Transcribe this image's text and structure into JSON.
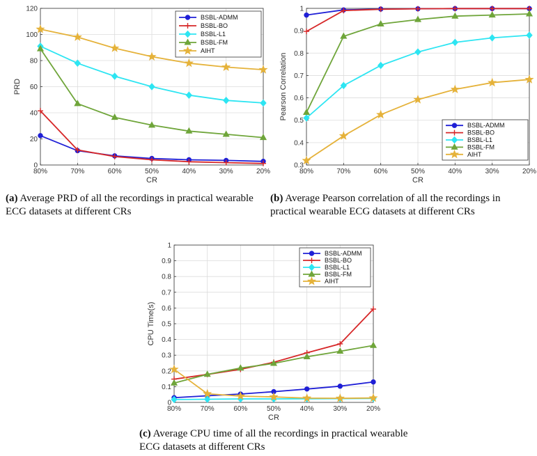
{
  "chart_data": [
    {
      "id": "a",
      "type": "line",
      "categories": [
        "80%",
        "70%",
        "60%",
        "50%",
        "40%",
        "30%",
        "20%"
      ],
      "xlabel": "CR",
      "ylabel": "PRD",
      "ylim": [
        0,
        120
      ],
      "yticks": [
        "0",
        "20",
        "40",
        "60",
        "80",
        "100",
        "120"
      ],
      "grid": true,
      "legend_position": "top-right",
      "series": [
        {
          "name": "BSBL-ADMM",
          "color": "#1f1fd6",
          "marker": "circle",
          "values": [
            22.5,
            11,
            7,
            5,
            4,
            3.5,
            2.8
          ]
        },
        {
          "name": "BSBL-BO",
          "color": "#d62728",
          "marker": "plus",
          "values": [
            41.5,
            11.5,
            6.5,
            4,
            2.5,
            1.8,
            1.2
          ]
        },
        {
          "name": "BSBL-L1",
          "color": "#2de5f2",
          "marker": "diamond",
          "values": [
            91,
            78,
            68,
            60,
            53.5,
            49.5,
            47.5
          ]
        },
        {
          "name": "BSBL-FM",
          "color": "#6fa53a",
          "marker": "triangle",
          "values": [
            89,
            47,
            36.5,
            30.5,
            26,
            23.5,
            21
          ]
        },
        {
          "name": "AIHT",
          "color": "#e5b23a",
          "marker": "star",
          "values": [
            104,
            98,
            89.5,
            83,
            78,
            75,
            73
          ]
        }
      ]
    },
    {
      "id": "b",
      "type": "line",
      "categories": [
        "80%",
        "70%",
        "60%",
        "50%",
        "40%",
        "30%",
        "20%"
      ],
      "xlabel": "CR",
      "ylabel": "Pearson Correlation",
      "ylim": [
        0.3,
        1
      ],
      "yticks": [
        "0.3",
        "0.4",
        "0.5",
        "0.6",
        "0.7",
        "0.8",
        "0.9",
        "1"
      ],
      "grid": true,
      "legend_position": "bottom-right",
      "series": [
        {
          "name": "BSBL-ADMM",
          "color": "#1f1fd6",
          "marker": "circle",
          "values": [
            0.97,
            0.993,
            0.997,
            0.998,
            0.999,
            0.999,
            0.999
          ]
        },
        {
          "name": "BSBL-BO",
          "color": "#d62728",
          "marker": "plus",
          "values": [
            0.897,
            0.99,
            0.996,
            0.998,
            0.999,
            0.999,
            0.999
          ]
        },
        {
          "name": "BSBL-L1",
          "color": "#2de5f2",
          "marker": "diamond",
          "values": [
            0.51,
            0.655,
            0.745,
            0.805,
            0.848,
            0.868,
            0.88
          ]
        },
        {
          "name": "BSBL-FM",
          "color": "#6fa53a",
          "marker": "triangle",
          "values": [
            0.535,
            0.875,
            0.93,
            0.95,
            0.965,
            0.97,
            0.975
          ]
        },
        {
          "name": "AIHT",
          "color": "#e5b23a",
          "marker": "star",
          "values": [
            0.32,
            0.43,
            0.525,
            0.592,
            0.638,
            0.668,
            0.682
          ]
        }
      ]
    },
    {
      "id": "c",
      "type": "line",
      "categories": [
        "80%",
        "70%",
        "60%",
        "50%",
        "40%",
        "30%",
        "20%"
      ],
      "xlabel": "CR",
      "ylabel": "CPU Time(s)",
      "ylim": [
        0,
        1
      ],
      "yticks": [
        "0",
        "0.1",
        "0.2",
        "0.3",
        "0.4",
        "0.5",
        "0.6",
        "0.7",
        "0.8",
        "0.9",
        "1"
      ],
      "grid": true,
      "legend_position": "top-right",
      "series": [
        {
          "name": "BSBL-ADMM",
          "color": "#1f1fd6",
          "marker": "circle",
          "values": [
            0.03,
            0.042,
            0.053,
            0.068,
            0.085,
            0.103,
            0.13
          ]
        },
        {
          "name": "BSBL-BO",
          "color": "#d62728",
          "marker": "plus",
          "values": [
            0.148,
            0.178,
            0.21,
            0.255,
            0.315,
            0.372,
            0.593
          ]
        },
        {
          "name": "BSBL-L1",
          "color": "#2de5f2",
          "marker": "diamond",
          "values": [
            0.018,
            0.02,
            0.022,
            0.022,
            0.023,
            0.024,
            0.025
          ]
        },
        {
          "name": "BSBL-FM",
          "color": "#6fa53a",
          "marker": "triangle",
          "values": [
            0.123,
            0.178,
            0.218,
            0.248,
            0.29,
            0.325,
            0.362
          ]
        },
        {
          "name": "AIHT",
          "color": "#e5b23a",
          "marker": "star",
          "values": [
            0.21,
            0.055,
            0.04,
            0.035,
            0.027,
            0.026,
            0.028
          ]
        }
      ]
    }
  ],
  "captions": {
    "a_label": "(a)",
    "a_text": " Average PRD of all the recordings in practical wearable ECG datasets at different CRs",
    "b_label": "(b)",
    "b_text": " Average Pearson correlation of all the recordings in practical wearable ECG datasets at different CRs",
    "c_label": "(c)",
    "c_text": " Average CPU time of all the recordings in practical wearable ECG datasets at different CRs"
  }
}
